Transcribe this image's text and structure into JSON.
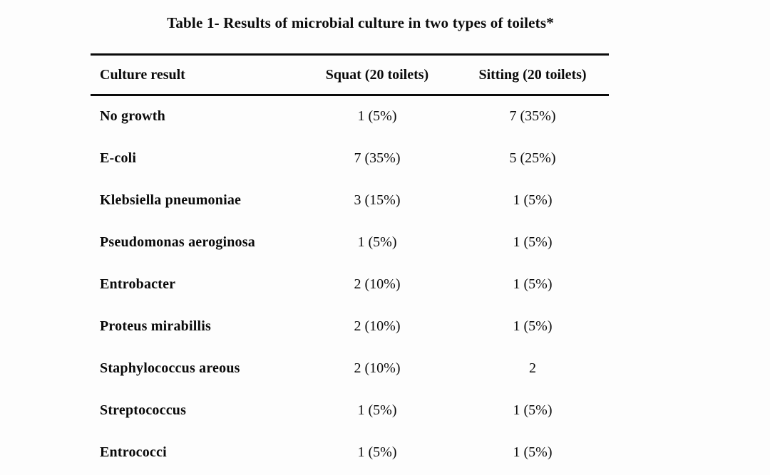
{
  "page": {
    "title": "Table 1- Results of microbial culture in two types of toilets*"
  },
  "table": {
    "columns": [
      "Culture result",
      "Squat (20 toilets)",
      "Sitting (20 toilets)"
    ],
    "rows": [
      {
        "culture": "No growth",
        "squat": "1 (5%)",
        "sitting": "7 (35%)"
      },
      {
        "culture": "E-coli",
        "squat": "7 (35%)",
        "sitting": "5 (25%)"
      },
      {
        "culture": "Klebsiella pneumoniae",
        "squat": "3 (15%)",
        "sitting": "1 (5%)"
      },
      {
        "culture": "Pseudomonas aeroginosa",
        "squat": "1 (5%)",
        "sitting": "1 (5%)"
      },
      {
        "culture": "Entrobacter",
        "squat": "2 (10%)",
        "sitting": "1 (5%)"
      },
      {
        "culture": "Proteus mirabillis",
        "squat": "2 (10%)",
        "sitting": "1 (5%)"
      },
      {
        "culture": "Staphylococcus areous",
        "squat": "2 (10%)",
        "sitting": "2"
      },
      {
        "culture": "Streptococcus",
        "squat": "1 (5%)",
        "sitting": "1 (5%)"
      },
      {
        "culture": "Entrococci",
        "squat": "1 (5%)",
        "sitting": "1 (5%)"
      }
    ]
  },
  "colors": {
    "text": "#0a0a0a",
    "rule": "#0b0b0b",
    "background": "#fdfdfd"
  }
}
